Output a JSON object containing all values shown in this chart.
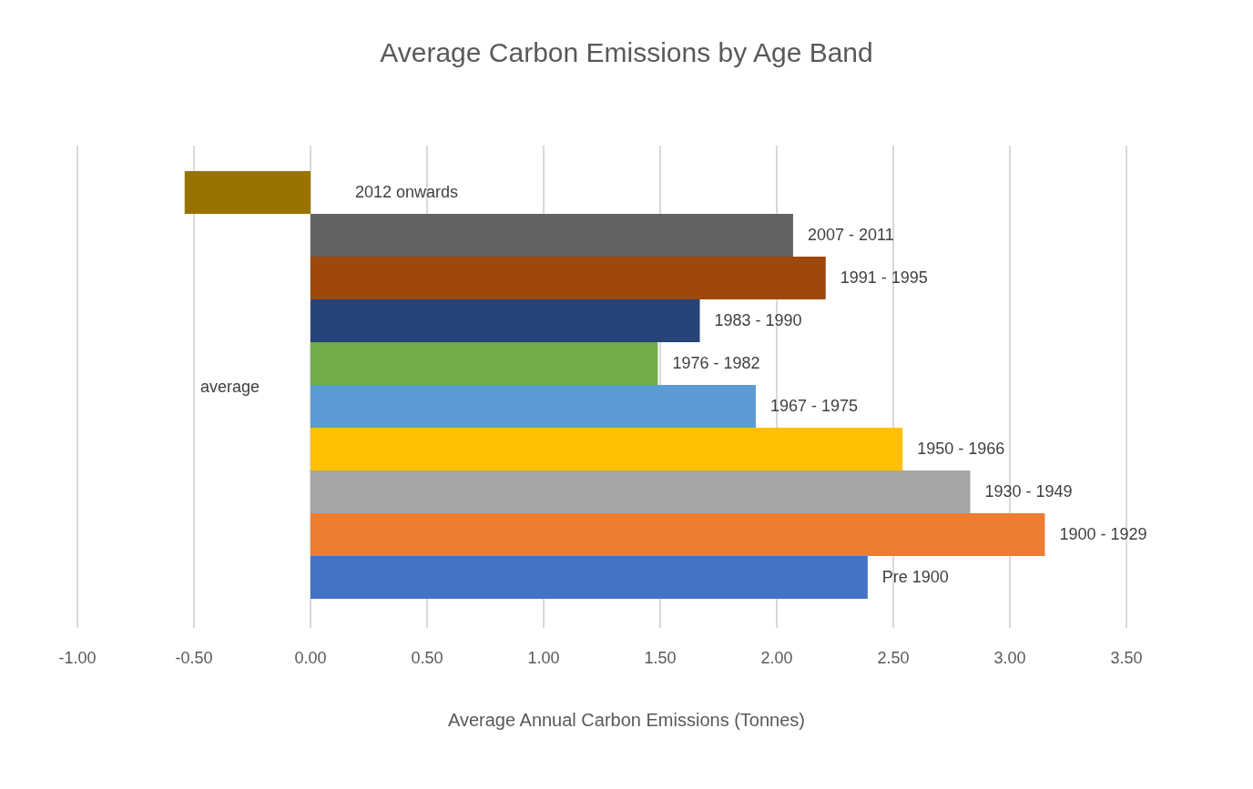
{
  "chart_data": {
    "type": "bar",
    "orientation": "horizontal",
    "title": "Average Carbon Emissions by Age Band",
    "xlabel": "Average Annual Carbon Emissions (Tonnes)",
    "categories": [
      "average"
    ],
    "series": [
      {
        "name": "2012 onwards",
        "color": "#997300",
        "values": [
          -0.54
        ]
      },
      {
        "name": "2007 - 2011",
        "color": "#636363",
        "values": [
          2.07
        ]
      },
      {
        "name": "1991 - 1995",
        "color": "#9e480e",
        "values": [
          2.21
        ]
      },
      {
        "name": "1983 - 1990",
        "color": "#264478",
        "values": [
          1.67
        ]
      },
      {
        "name": "1976 - 1982",
        "color": "#70ad47",
        "values": [
          1.49
        ]
      },
      {
        "name": "1967 - 1975",
        "color": "#5b9bd5",
        "values": [
          1.91
        ]
      },
      {
        "name": "1950 - 1966",
        "color": "#ffc000",
        "values": [
          2.54
        ]
      },
      {
        "name": "1930 - 1949",
        "color": "#a5a5a5",
        "values": [
          2.83
        ]
      },
      {
        "name": "1900 - 1929",
        "color": "#ed7d31",
        "values": [
          3.15
        ]
      },
      {
        "name": "Pre 1900",
        "color": "#4472c4",
        "values": [
          2.39
        ]
      }
    ],
    "xlim": [
      -1,
      3.5
    ],
    "xticks": [
      {
        "value": -1,
        "label": "-1.00"
      },
      {
        "value": -0.5,
        "label": "-0.50"
      },
      {
        "value": 0,
        "label": "0.00"
      },
      {
        "value": 0.5,
        "label": "0.50"
      },
      {
        "value": 1,
        "label": "1.00"
      },
      {
        "value": 1.5,
        "label": "1.50"
      },
      {
        "value": 2,
        "label": "2.00"
      },
      {
        "value": 2.5,
        "label": "2.50"
      },
      {
        "value": 3,
        "label": "3.00"
      },
      {
        "value": 3.5,
        "label": "3.50"
      }
    ],
    "grid": "x",
    "legend": false
  }
}
